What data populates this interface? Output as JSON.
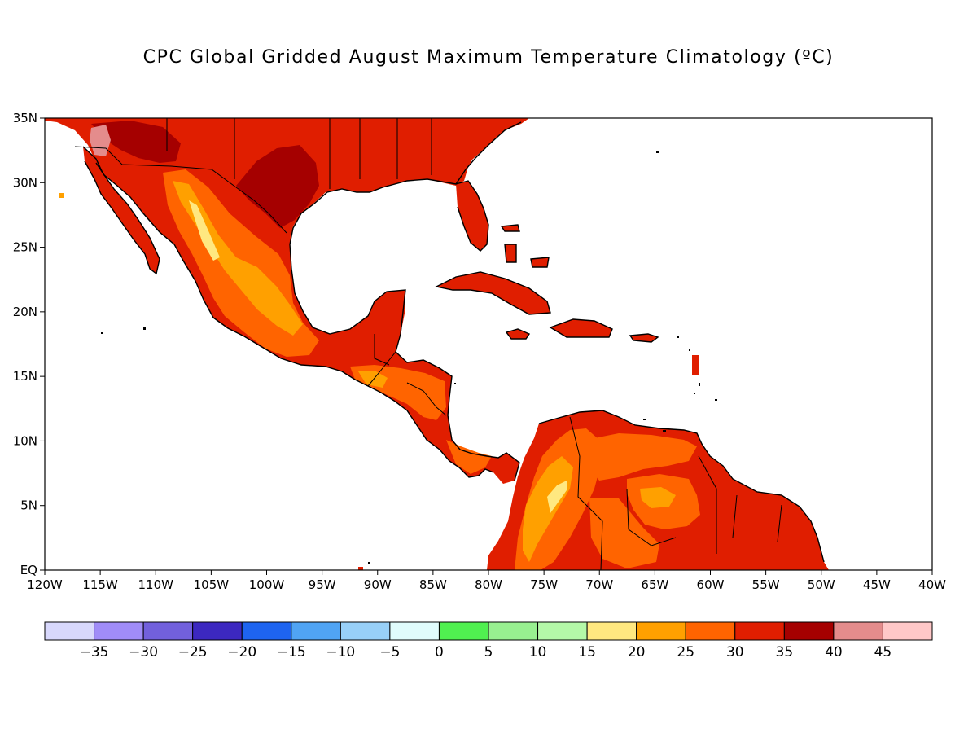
{
  "title": "CPC Global Gridded August Maximum Temperature Climatology (ºC)",
  "map": {
    "lat_labels": [
      "35N",
      "30N",
      "25N",
      "20N",
      "15N",
      "10N",
      "5N",
      "EQ"
    ],
    "lon_labels": [
      "120W",
      "115W",
      "110W",
      "105W",
      "100W",
      "95W",
      "90W",
      "85W",
      "80W",
      "75W",
      "70W",
      "65W",
      "60W",
      "55W",
      "50W",
      "45W",
      "40W"
    ],
    "extent": {
      "west": "120W",
      "east": "40W",
      "south": "EQ",
      "north": "35N"
    }
  },
  "colorbar": {
    "colors": [
      "#d8d8fc",
      "#a08cf8",
      "#7260dc",
      "#3c28c0",
      "#1e64f0",
      "#50a4f4",
      "#98d0f8",
      "#e0fcfc",
      "#50f050",
      "#98f090",
      "#b4f8a8",
      "#ffe880",
      "#ffa000",
      "#ff6400",
      "#e01e00",
      "#a50000",
      "#e48c8c",
      "#ffc8c8"
    ],
    "tick_labels": [
      "−35",
      "−30",
      "−25",
      "−20",
      "−15",
      "−10",
      "−5",
      "0",
      "5",
      "10",
      "15",
      "20",
      "25",
      "30",
      "35",
      "40",
      "45"
    ]
  }
}
